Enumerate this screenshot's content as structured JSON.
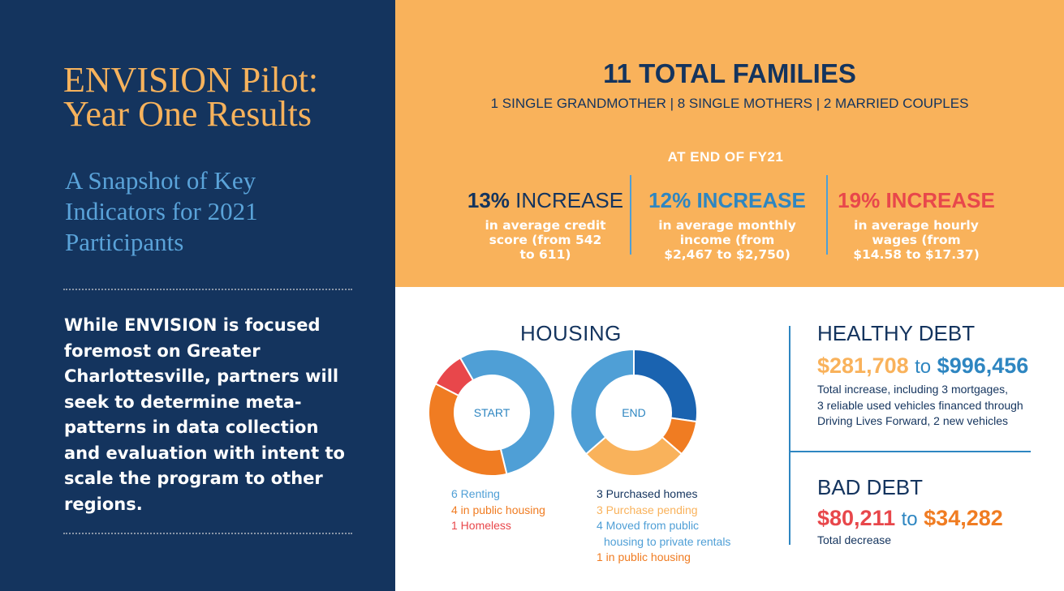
{
  "left": {
    "title_line1": "ENVISION Pilot:",
    "title_line2": "Year One Results",
    "subtitle_line1": "A Snapshot of Key",
    "subtitle_line2": "Indicators for 2021",
    "subtitle_line3": "Participants",
    "body": [
      "While ENVISION is focused",
      "foremost on Greater",
      "Charlottesville, partners will",
      "seek to determine meta-",
      "patterns in data collection",
      "and evaluation with intent to",
      "scale the program to other",
      "regions."
    ]
  },
  "top": {
    "families": "11 TOTAL FAMILIES",
    "breakdown": "1 SINGLE GRANDMOTHER | 8 SINGLE MOTHERS | 2 MARRIED COUPLES",
    "period": "AT END OF FY21",
    "stats": [
      {
        "pct": "13%",
        "label": "INCREASE",
        "desc": [
          "in average credit",
          "score (from 542",
          "to 611)"
        ],
        "color": "#14345e"
      },
      {
        "pct": "12%",
        "label": "INCREASE",
        "desc": [
          "in average monthly",
          "income (from",
          "$2,467 to $2,750)"
        ],
        "color": "#2e86c1"
      },
      {
        "pct": "19%",
        "label": "INCREASE",
        "desc": [
          "in average hourly",
          "wages (from",
          "$14.58 to $17.37)"
        ],
        "color": "#e8474b"
      }
    ]
  },
  "housing": {
    "title": "HOUSING",
    "start_label": "START",
    "end_label": "END",
    "start_items": [
      "6 Renting",
      "4 in public housing",
      "1 Homeless"
    ],
    "end_items": [
      "3 Purchased homes",
      "3 Purchase pending",
      "4 Moved from public",
      "housing to private rentals",
      "1 in public housing"
    ]
  },
  "chart_data": [
    {
      "type": "pie",
      "center_label": "START",
      "categories": [
        "Renting",
        "in public housing",
        "Homeless"
      ],
      "values": [
        6,
        4,
        1
      ],
      "colors": [
        "#4f9fd6",
        "#f07c22",
        "#e8474b"
      ]
    },
    {
      "type": "pie",
      "center_label": "END",
      "categories": [
        "Purchased homes",
        "in public housing",
        "Purchase pending",
        "Moved from public housing to private rentals"
      ],
      "values": [
        3,
        1,
        3,
        4
      ],
      "colors": [
        "#1a63b0",
        "#f07c22",
        "#f9b25b",
        "#4f9fd6"
      ]
    }
  ],
  "debt": {
    "healthy_title": "HEALTHY DEBT",
    "healthy_from": "$281,708",
    "healthy_to": "$996,456",
    "to_word": "to",
    "healthy_desc": [
      "Total increase, including 3 mortgages,",
      "3 reliable used vehicles financed through",
      "Driving Lives Forward, 2 new vehicles"
    ],
    "bad_title": "BAD DEBT",
    "bad_from": "$80,211",
    "bad_to": "$34,282",
    "bad_desc": "Total decrease",
    "colors": {
      "healthy_from": "#f9b25b",
      "healthy_to": "#2e86c1",
      "bad_from": "#e8474b",
      "bad_to": "#f07c22"
    }
  }
}
